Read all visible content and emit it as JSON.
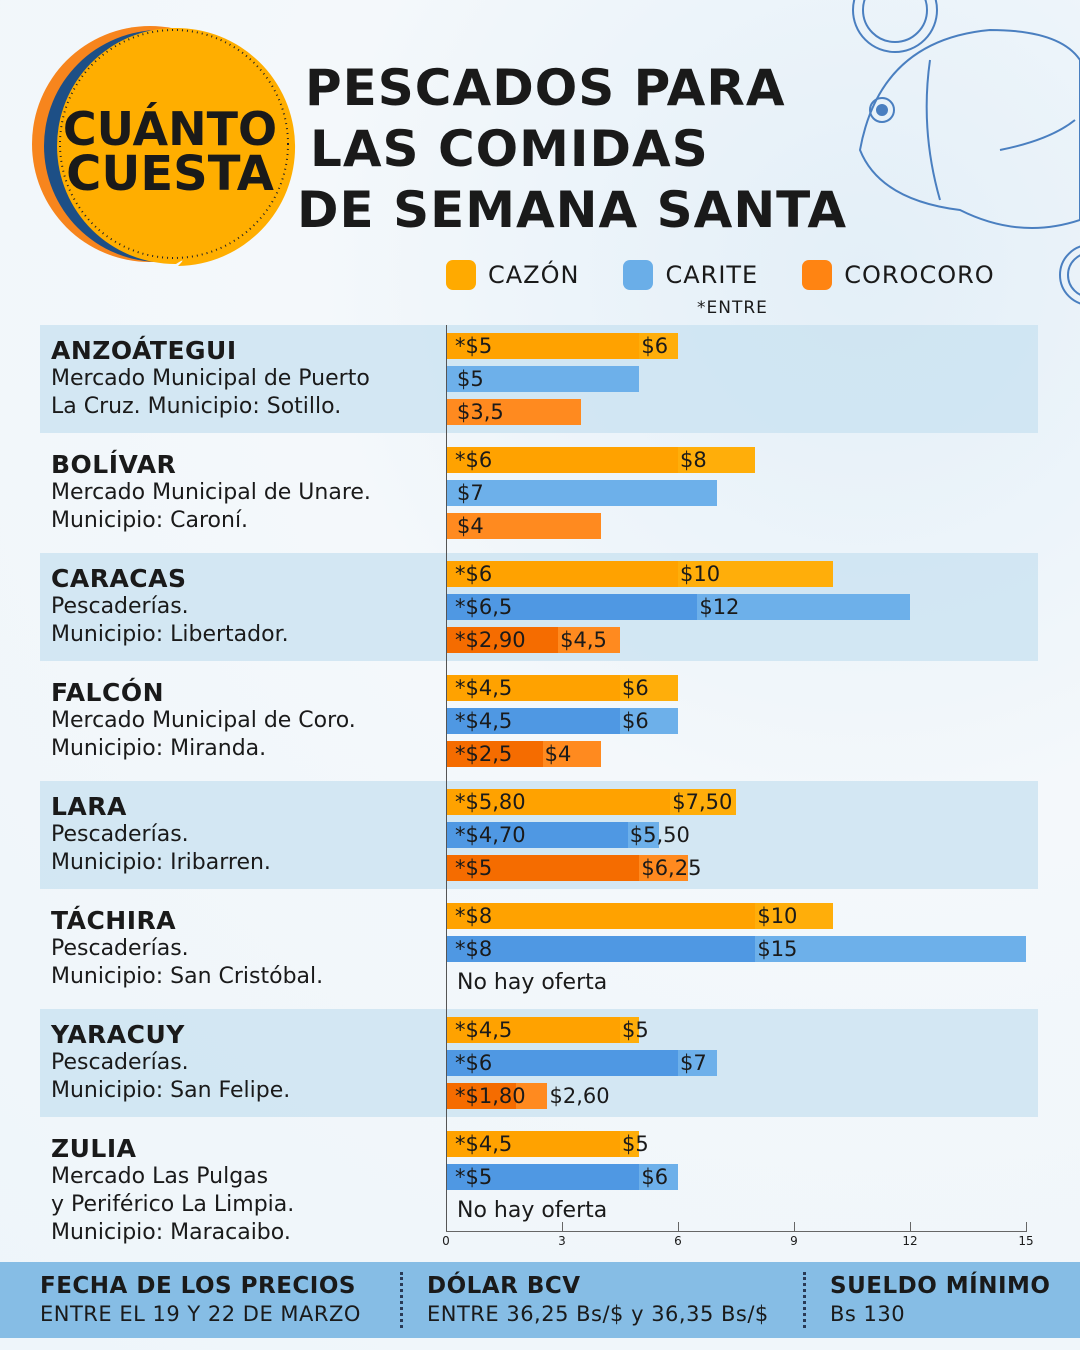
{
  "badge": {
    "line1": "CUÁNTO",
    "line2": "CUESTA"
  },
  "title": [
    "PESCADOS PARA",
    "LAS COMIDAS",
    "DE SEMANA SANTA"
  ],
  "legend": [
    {
      "label": "CAZÓN",
      "color": "#FFAA00"
    },
    {
      "label": "CARITE",
      "color": "#6AAEE8"
    },
    {
      "label": "COROCORO",
      "color": "#FF8412"
    }
  ],
  "legend_note": "*ENTRE",
  "no_offer": "No hay oferta",
  "colors": {
    "cazon": [
      "#FFA200",
      "#FFAE0A"
    ],
    "carite": [
      "#4F98E3",
      "#6DB0EA"
    ],
    "corocoro": [
      "#F56C00",
      "#FF8A1F"
    ]
  },
  "chart_data": {
    "type": "bar",
    "orientation": "horizontal",
    "xlim": [
      0,
      15
    ],
    "xticks": [
      "0",
      "3",
      "6",
      "9",
      "12",
      "15"
    ],
    "series": [
      "cazon",
      "carite",
      "corocoro"
    ],
    "states": [
      {
        "name": "ANZOÁTEGUI",
        "lines": [
          "Mercado Municipal de Puerto",
          "La Cruz. Municipio: Sotillo."
        ],
        "cazon": {
          "min": 5,
          "max": 6,
          "min_label": "*$5",
          "max_label": "$6"
        },
        "carite": {
          "min": 5,
          "max": 5,
          "min_label": "$5"
        },
        "corocoro": {
          "min": 3.5,
          "max": 3.5,
          "min_label": "$3,5"
        }
      },
      {
        "name": "BOLÍVAR",
        "lines": [
          "Mercado Municipal de Unare.",
          "Municipio: Caroní."
        ],
        "cazon": {
          "min": 6,
          "max": 8,
          "min_label": "*$6",
          "max_label": "$8"
        },
        "carite": {
          "min": 7,
          "max": 7,
          "min_label": "$7"
        },
        "corocoro": {
          "min": 4,
          "max": 4,
          "min_label": "$4"
        }
      },
      {
        "name": "CARACAS",
        "lines": [
          "Pescaderías.",
          "Municipio: Libertador."
        ],
        "cazon": {
          "min": 6,
          "max": 10,
          "min_label": "*$6",
          "max_label": "$10"
        },
        "carite": {
          "min": 6.5,
          "max": 12,
          "min_label": "*$6,5",
          "max_label": "$12"
        },
        "corocoro": {
          "min": 2.9,
          "max": 4.5,
          "min_label": "*$2,90",
          "max_label": "$4,5"
        }
      },
      {
        "name": "FALCÓN",
        "lines": [
          "Mercado Municipal de Coro.",
          "Municipio: Miranda."
        ],
        "cazon": {
          "min": 4.5,
          "max": 6,
          "min_label": "*$4,5",
          "max_label": "$6"
        },
        "carite": {
          "min": 4.5,
          "max": 6,
          "min_label": "*$4,5",
          "max_label": "$6"
        },
        "corocoro": {
          "min": 2.5,
          "max": 4,
          "min_label": "*$2,5",
          "max_label": "$4"
        }
      },
      {
        "name": "LARA",
        "lines": [
          "Pescaderías.",
          "Municipio: Iribarren."
        ],
        "cazon": {
          "min": 5.8,
          "max": 7.5,
          "min_label": "*$5,80",
          "max_label": "$7,50"
        },
        "carite": {
          "min": 4.7,
          "max": 5.5,
          "min_label": "*$4,70",
          "max_label": "$5,50"
        },
        "corocoro": {
          "min": 5,
          "max": 6.25,
          "min_label": "*$5",
          "max_label": "$6,25"
        }
      },
      {
        "name": "TÁCHIRA",
        "lines": [
          "Pescaderías.",
          "Municipio: San Cristóbal."
        ],
        "cazon": {
          "min": 8,
          "max": 10,
          "min_label": "*$8",
          "max_label": "$10"
        },
        "carite": {
          "min": 8,
          "max": 15,
          "min_label": "*$8",
          "max_label": "$15"
        },
        "corocoro": null
      },
      {
        "name": "YARACUY",
        "lines": [
          "Pescaderías.",
          "Municipio: San Felipe."
        ],
        "cazon": {
          "min": 4.5,
          "max": 5,
          "min_label": "*$4,5",
          "max_label": "$5"
        },
        "carite": {
          "min": 6,
          "max": 7,
          "min_label": "*$6",
          "max_label": "$7"
        },
        "corocoro": {
          "min": 1.8,
          "max": 2.6,
          "min_label": "*$1,80",
          "max_label": "$2,60"
        }
      },
      {
        "name": "ZULIA",
        "lines": [
          "Mercado Las Pulgas",
          "y Periférico La Limpia.",
          "Municipio: Maracaibo."
        ],
        "cazon": {
          "min": 4.5,
          "max": 5,
          "min_label": "*$4,5",
          "max_label": "$5"
        },
        "carite": {
          "min": 5,
          "max": 6,
          "min_label": "*$5",
          "max_label": "$6"
        },
        "corocoro": null
      }
    ]
  },
  "footer": [
    {
      "heading": "FECHA DE LOS PRECIOS",
      "value": "ENTRE EL 19 Y 22 DE MARZO"
    },
    {
      "heading": "DÓLAR BCV",
      "value": "ENTRE 36,25 Bs/$ y 36,35 Bs/$"
    },
    {
      "heading": "SUELDO MÍNIMO",
      "value": "Bs 130"
    }
  ]
}
